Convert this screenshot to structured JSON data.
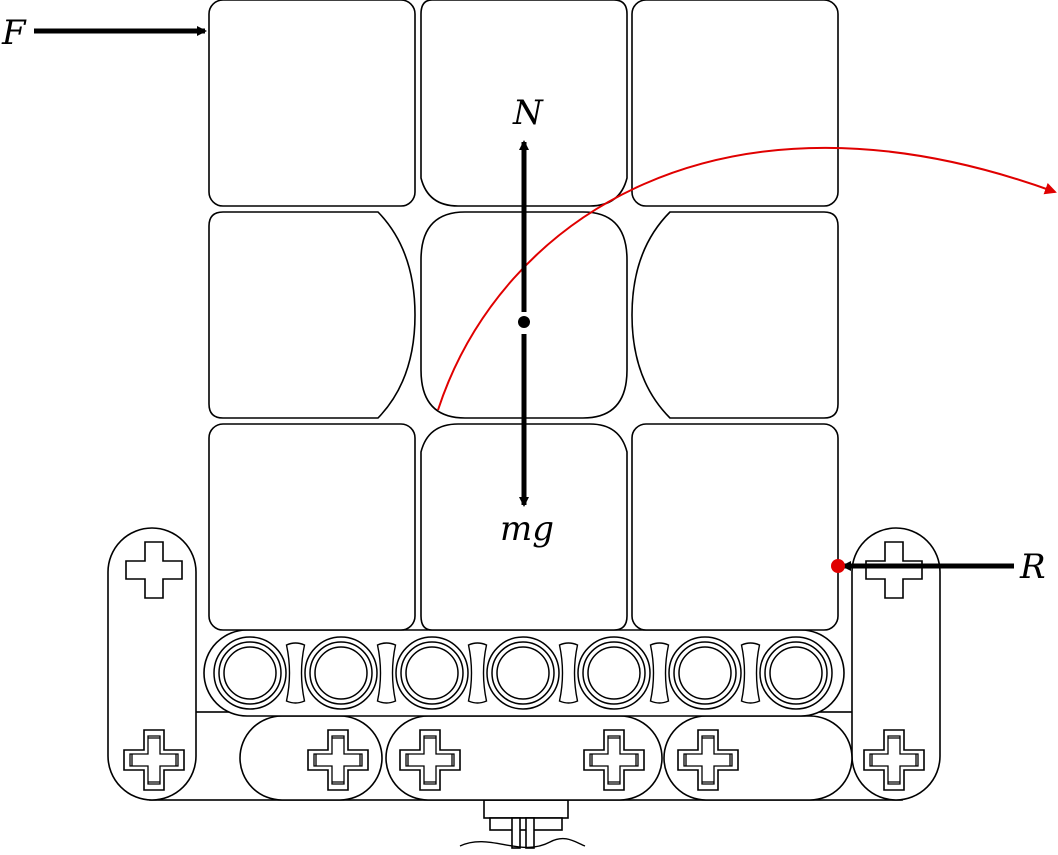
{
  "labels": {
    "force_applied": "F",
    "normal_force": "N",
    "weight": "mg",
    "reaction_force": "R"
  },
  "colors": {
    "outline": "#000000",
    "rotation_arrow": "#e00000",
    "pivot_point": "#e00000",
    "force_arrow": "#000000",
    "background": "#ffffff"
  }
}
